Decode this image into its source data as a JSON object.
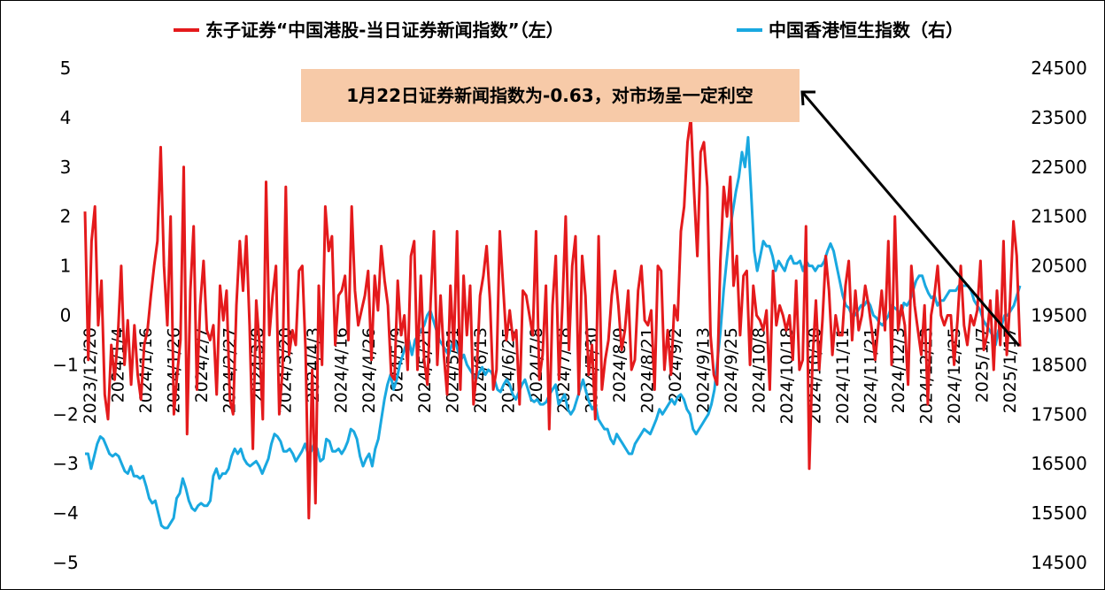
{
  "chart_data": {
    "type": "line",
    "legend": {
      "placement": "top",
      "entries": [
        {
          "label": "东子证券“中国港股-当日证券新闻指数”（左）",
          "color": "#e41a1c",
          "axis": "left"
        },
        {
          "label": "中国香港恒生指数（右）",
          "color": "#19a8e0",
          "axis": "right"
        }
      ]
    },
    "annotation": {
      "text": "1月22日证券新闻指数为-0.63，对市场呈一定利空",
      "fill": "#f7caa8"
    },
    "y_left": {
      "ticks": [
        "5",
        "4",
        "3",
        "2",
        "1",
        "0",
        "−1",
        "−2",
        "−3",
        "−4",
        "−5"
      ],
      "range": [
        -5,
        5
      ]
    },
    "y_right": {
      "ticks": [
        "24500",
        "23500",
        "22500",
        "21500",
        "20500",
        "19500",
        "18500",
        "17500",
        "16500",
        "15500",
        "14500"
      ],
      "range": [
        14500,
        24500
      ]
    },
    "x_tick_labels": [
      "2023/12/20",
      "2024/1/4",
      "2024/1/16",
      "2024/1/26",
      "2024/2/7",
      "2024/2/27",
      "2024/3/8",
      "2024/3/20",
      "2024/4/3",
      "2024/4/16",
      "2024/4/26",
      "2024/5/9",
      "2024/5/21",
      "2024/5/31",
      "2024/6/13",
      "2024/6/25",
      "2024/7/8",
      "2024/7/18",
      "2024/7/30",
      "2024/8/9",
      "2024/8/21",
      "2024/9/2",
      "2024/9/13",
      "2024/9/25",
      "2024/10/8",
      "2024/10/18",
      "2024/10/30",
      "2024/11/11",
      "2024/11/21",
      "2024/12/3",
      "2024/12/13",
      "2024/12/25",
      "2025/1/7",
      "2025/1/17"
    ],
    "series": [
      {
        "name": "东子证券“中国港股-当日证券新闻指数”（左）",
        "axis": "left",
        "color": "#e41a1c",
        "values": [
          2.1,
          -0.9,
          1.5,
          2.2,
          -0.2,
          0.7,
          -1.6,
          -2.1,
          -0.6,
          -1.3,
          -0.4,
          1.0,
          -1.0,
          -0.1,
          -1.4,
          -0.2,
          -1.2,
          -1.7,
          -0.6,
          -0.3,
          0.4,
          1.0,
          1.5,
          3.4,
          1.0,
          -0.2,
          2.0,
          -2.0,
          -1.2,
          -0.5,
          3.0,
          -2.4,
          0.5,
          1.8,
          -1.5,
          0.2,
          1.1,
          -0.3,
          -0.5,
          -0.2,
          -1.6,
          0.6,
          -0.1,
          0.5,
          -1.7,
          -2.0,
          0.2,
          1.5,
          0.5,
          1.6,
          -0.2,
          -2.7,
          0.3,
          -0.6,
          -2.1,
          2.7,
          -0.4,
          0.4,
          1.0,
          -2.0,
          -1.1,
          2.6,
          -0.8,
          -0.3,
          -0.6,
          0.9,
          1.0,
          -0.7,
          -4.1,
          -1.1,
          -3.8,
          0.6,
          -1.0,
          2.2,
          1.3,
          1.6,
          -0.6,
          0.4,
          0.5,
          0.8,
          -0.5,
          2.2,
          0.5,
          -0.2,
          0.1,
          0.4,
          0.9,
          -0.9,
          0.8,
          0.1,
          1.4,
          0.7,
          0.2,
          -1.2,
          -1.3,
          0.7,
          -0.4,
          0.0,
          -1.1,
          1.2,
          1.5,
          -1.1,
          0.8,
          -0.9,
          -1.4,
          0.3,
          1.7,
          -1.0,
          0.4,
          -0.8,
          -1.6,
          0.6,
          -0.7,
          1.7,
          -1.5,
          0.8,
          -0.4,
          0.6,
          -1.8,
          -1.1,
          0.4,
          0.8,
          1.4,
          0.3,
          -1.5,
          -1.1,
          1.7,
          0.6,
          -0.5,
          0.1,
          -0.5,
          -0.3,
          -1.8,
          0.5,
          0.4,
          0.0,
          -0.4,
          1.7,
          -1.3,
          -0.8,
          0.6,
          -2.3,
          0.2,
          1.2,
          -1.3,
          0.2,
          2.0,
          -0.7,
          1.0,
          1.6,
          -1.6,
          1.2,
          0.4,
          -1.2,
          -0.6,
          -2.1,
          1.6,
          -1.5,
          -0.9,
          -0.5,
          0.4,
          0.9,
          0.2,
          -0.7,
          -0.3,
          0.5,
          -1.1,
          -0.9,
          0.5,
          1.0,
          -0.1,
          -0.2,
          0.1,
          -1.5,
          1.0,
          0.9,
          -1.1,
          -0.3,
          -1.2,
          0.2,
          -0.1,
          1.7,
          2.2,
          3.5,
          4.0,
          2.5,
          1.2,
          3.3,
          3.5,
          2.6,
          -0.4,
          -1.2,
          -1.4,
          1.1,
          2.6,
          2.0,
          2.8,
          0.6,
          1.2,
          -0.4,
          0.8,
          0.9,
          -1.0,
          0.6,
          0.0,
          -0.1,
          -0.3,
          0.1,
          -1.5,
          0.9,
          -0.2,
          0.2,
          0.0,
          -0.3,
          0.0,
          -0.9,
          0.7,
          -1.1,
          -0.9,
          1.8,
          -3.1,
          -0.9,
          0.3,
          -1.1,
          -0.1,
          1.2,
          0.5,
          -0.8,
          0.0,
          -0.4,
          -0.4,
          0.6,
          1.1,
          -0.5,
          0.5,
          -0.3,
          0.0,
          0.6,
          0.2,
          -0.3,
          -0.9,
          -0.2,
          0.5,
          -0.3,
          1.5,
          -1.0,
          2.0,
          -0.3,
          0.2,
          -0.2,
          -1.4,
          1.0,
          0.2,
          -0.3,
          -0.8,
          0.2,
          -1.8,
          0.0,
          0.4,
          1.0,
          0.0,
          -0.2,
          0.0,
          0.0,
          -1.0,
          -0.1,
          1.0,
          -0.2,
          -0.6,
          0.0,
          -0.2,
          0.1,
          1.1,
          -0.7,
          -0.4,
          0.3,
          -1.1,
          0.5,
          -0.6,
          1.5,
          -0.8,
          0.3,
          1.9,
          1.2,
          -0.63
        ]
      },
      {
        "name": "中国香港恒生指数（右）",
        "axis": "right",
        "color": "#19a8e0",
        "values": [
          16700,
          16700,
          16400,
          16650,
          16900,
          17050,
          17000,
          16850,
          16700,
          16650,
          16700,
          16650,
          16500,
          16350,
          16300,
          16450,
          16250,
          16250,
          16200,
          16250,
          16050,
          15800,
          15700,
          15750,
          15500,
          15250,
          15200,
          15200,
          15300,
          15400,
          15800,
          15900,
          16200,
          16000,
          15750,
          15600,
          15550,
          15650,
          15700,
          15650,
          15650,
          15750,
          16250,
          16400,
          16200,
          16300,
          16300,
          16400,
          16650,
          16800,
          16700,
          16800,
          16600,
          16500,
          16450,
          16500,
          16550,
          16450,
          16300,
          16450,
          16600,
          16900,
          17100,
          17050,
          16950,
          16750,
          16750,
          16800,
          16700,
          16550,
          16650,
          16750,
          16900,
          16700,
          16750,
          16900,
          16800,
          16550,
          16600,
          17000,
          16950,
          16750,
          16750,
          16800,
          16700,
          16800,
          16950,
          17200,
          17150,
          17000,
          16650,
          16450,
          16600,
          16700,
          16450,
          16800,
          17000,
          17400,
          17800,
          18100,
          18300,
          18000,
          18200,
          18500,
          18700,
          18900,
          19000,
          18700,
          19000,
          19100,
          19200,
          19300,
          19500,
          19600,
          19400,
          19200,
          19000,
          18900,
          18800,
          18700,
          18900,
          19000,
          18800,
          18600,
          18700,
          18500,
          18400,
          18300,
          18200,
          18350,
          18450,
          18300,
          18400,
          18350,
          18200,
          18000,
          17950,
          18100,
          18200,
          18100,
          17900,
          17800,
          17950,
          18100,
          18200,
          18000,
          17800,
          17750,
          17800,
          17700,
          17700,
          17750,
          17900,
          18000,
          18100,
          17700,
          17800,
          17900,
          17600,
          17500,
          17600,
          17800,
          18000,
          18200,
          17950,
          17750,
          17600,
          17700,
          17400,
          17300,
          17200,
          17200,
          17000,
          16900,
          17100,
          17000,
          16900,
          16800,
          16700,
          16700,
          16900,
          17000,
          17100,
          17200,
          17150,
          17100,
          17250,
          17400,
          17600,
          17500,
          17600,
          17700,
          17800,
          17700,
          17850,
          17900,
          17800,
          17600,
          17500,
          17200,
          17100,
          17200,
          17300,
          17400,
          17500,
          17700,
          18000,
          18600,
          19200,
          20000,
          20600,
          21200,
          21600,
          22000,
          22300,
          22800,
          22500,
          23100,
          22000,
          20800,
          20400,
          20700,
          21000,
          20900,
          20900,
          20700,
          20400,
          20600,
          20500,
          20400,
          20600,
          20700,
          20550,
          20550,
          20600,
          20400,
          20600,
          20500,
          20500,
          20400,
          20500,
          20500,
          20600,
          20800,
          20950,
          20800,
          20500,
          20200,
          19900,
          19700,
          19650,
          19500,
          19500,
          19600,
          19700,
          19700,
          19800,
          19700,
          19500,
          19450,
          19350,
          19300,
          19400,
          19500,
          19700,
          19650,
          19600,
          19500,
          19750,
          19700,
          19800,
          20000,
          20200,
          20300,
          20300,
          20100,
          19950,
          19850,
          19900,
          19700,
          19800,
          19800,
          19900,
          20000,
          20000,
          20000,
          20100,
          20100,
          20100,
          20100,
          20000,
          19800,
          19700,
          19600,
          19400,
          19300,
          19200,
          19100,
          18900,
          19200,
          19300,
          19500,
          19500,
          19600,
          19700,
          19900,
          20100
        ]
      }
    ]
  }
}
